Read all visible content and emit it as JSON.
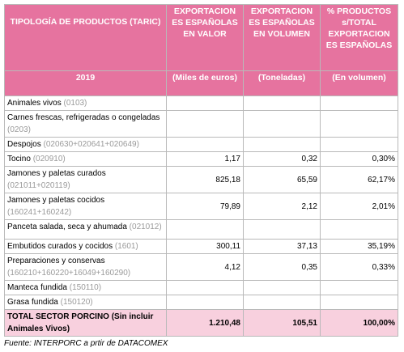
{
  "table": {
    "header": [
      "TIPOLOGÍA DE PRODUCTOS (TARIC)",
      "EXPORTACION ES ESPAÑOLAS EN VALOR",
      "EXPORTACION ES ESPAÑOLAS EN VOLUMEN",
      "% PRODUCTOS s/TOTAL EXPORTACION ES ESPAÑOLAS"
    ],
    "subheader": [
      "2019",
      "(Miles de euros)",
      "(Toneladas)",
      "(En volumen)"
    ],
    "rows": [
      {
        "product": "Animales vivos",
        "code": "(0103)"
      },
      {
        "product": "Carnes frescas, refrigeradas o congeladas",
        "code": "(0203)"
      },
      {
        "product": "Despojos",
        "code": "(020630+020641+020649)"
      },
      {
        "product": "Tocino",
        "code": "(020910)",
        "valor": "1,17",
        "volumen": "0,32",
        "pct": "0,30%"
      },
      {
        "product": "Jamones y paletas curados",
        "code": "(021011+020119)",
        "valor": "825,18",
        "volumen": "65,59",
        "pct": "62,17%"
      },
      {
        "product": "Jamones y paletas cocidos",
        "code": "(160241+160242)",
        "valor": "79,89",
        "volumen": "2,12",
        "pct": "2,01%"
      },
      {
        "product": "Panceta salada, seca y ahumada",
        "code": "(021012)"
      },
      {
        "product": "Embutidos curados y cocidos",
        "code": "(1601)",
        "valor": "300,11",
        "volumen": "37,13",
        "pct": "35,19%"
      },
      {
        "product": "Preparaciones y conservas",
        "code": "(160210+160220+16049+160290)",
        "valor": "4,12",
        "volumen": "0,35",
        "pct": "0,33%"
      },
      {
        "product": "Manteca fundida",
        "code": "(150110)"
      },
      {
        "product": "Grasa fundida",
        "code": "(150120)"
      }
    ],
    "total": {
      "product": "TOTAL SECTOR PORCINO (Sin incluir Animales Vivos)",
      "valor": "1.210,48",
      "volumen": "105,51",
      "pct": "100,00%"
    }
  },
  "footer": "Fuente:  INTERPORC a prtir de DATACOMEX"
}
